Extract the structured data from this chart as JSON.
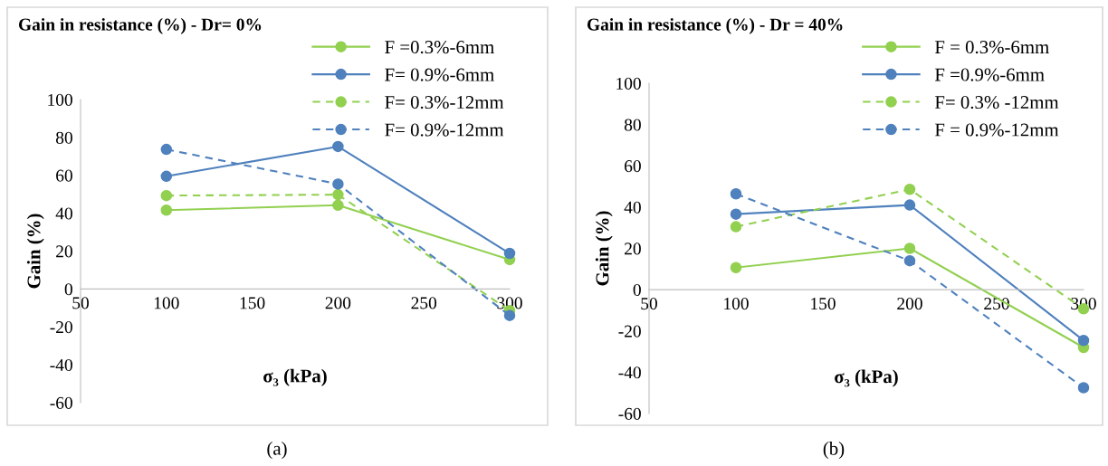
{
  "chart_data": [
    {
      "type": "line",
      "title": "Gain in resistance (%) - Dr= 0%",
      "xlabel": "σ₃ (kPa)",
      "ylabel": "Gain (%)",
      "x": [
        100,
        200,
        300
      ],
      "xlim": [
        50,
        300
      ],
      "xticks": [
        50,
        100,
        150,
        200,
        250,
        300
      ],
      "ylim": [
        -60,
        100
      ],
      "yticks": [
        -60,
        -40,
        -20,
        0,
        20,
        40,
        60,
        80,
        100
      ],
      "grid": false,
      "legend": "top right",
      "marker": "circle",
      "annotations": [
        "(a)"
      ],
      "series": [
        {
          "name": "F =0.3%-6mm",
          "color": "#92d050",
          "line_style": "solid",
          "values": [
            41.6,
            44.2,
            15.5
          ]
        },
        {
          "name": "F= 0.9%-6mm",
          "color": "#4f81bd",
          "line_style": "solid",
          "values": [
            59.5,
            75.2,
            18.8
          ]
        },
        {
          "name": "F= 0.3%-12mm",
          "color": "#92d050",
          "line_style": "dashed",
          "values": [
            49.3,
            49.8,
            -11.4
          ]
        },
        {
          "name": "F= 0.9%-12mm",
          "color": "#4f81bd",
          "line_style": "dashed",
          "values": [
            73.7,
            55.4,
            -14
          ]
        }
      ]
    },
    {
      "type": "line",
      "title": "Gain in resistance (%) - Dr = 40%",
      "xlabel": "σ₃ (kPa)",
      "ylabel": "Gain (%)",
      "x": [
        100,
        200,
        300
      ],
      "xlim": [
        50,
        300
      ],
      "xticks": [
        50,
        100,
        150,
        200,
        250,
        300
      ],
      "ylim": [
        -60,
        100
      ],
      "yticks": [
        -60,
        -40,
        -20,
        0,
        20,
        40,
        60,
        80,
        100
      ],
      "grid": false,
      "legend": "top right",
      "marker": "circle",
      "annotations": [
        "(b)"
      ],
      "series": [
        {
          "name": "F = 0.3%-6mm",
          "color": "#92d050",
          "line_style": "solid",
          "values": [
            10.7,
            20,
            -28
          ]
        },
        {
          "name": "F =0.9%-6mm",
          "color": "#4f81bd",
          "line_style": "solid",
          "values": [
            36.6,
            41,
            -24.6
          ]
        },
        {
          "name": "F= 0.3% -12mm",
          "color": "#92d050",
          "line_style": "dashed",
          "values": [
            30.5,
            48.6,
            -9.3
          ]
        },
        {
          "name": "F = 0.9%-12mm",
          "color": "#4f81bd",
          "line_style": "dashed",
          "values": [
            46.4,
            14,
            -47.5
          ]
        }
      ]
    }
  ]
}
